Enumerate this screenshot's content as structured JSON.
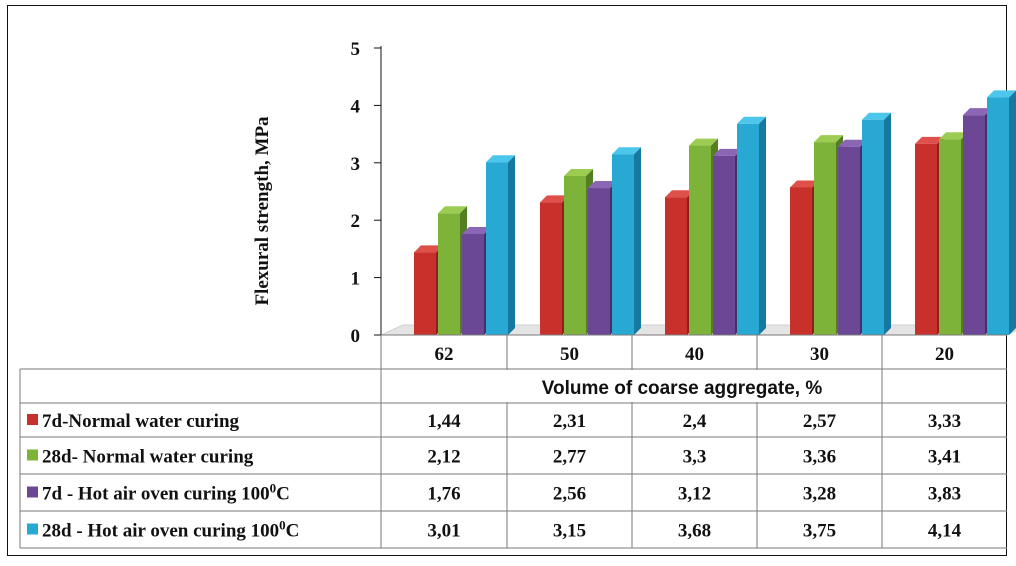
{
  "chart_data": {
    "type": "bar",
    "title": "",
    "xlabel": "Volume of coarse aggregate, %",
    "ylabel": "Flexural strength, MPa",
    "ylim": [
      0,
      5
    ],
    "yticks": [
      "0",
      "1",
      "2",
      "3",
      "4",
      "5"
    ],
    "categories": [
      "62",
      "50",
      "40",
      "30",
      "20"
    ],
    "series": [
      {
        "name": "7d-Normal water curing",
        "legend_text": "7d-Normal water curing",
        "legend_sup": "",
        "legend_suffix": "",
        "color": "#c8302c",
        "color_light": "#e0504a",
        "color_dark": "#8e1f1c",
        "values": [
          1.44,
          2.31,
          2.4,
          2.57,
          3.33
        ],
        "labels": [
          "1,44",
          "2,31",
          "2,4",
          "2,57",
          "3,33"
        ]
      },
      {
        "name": "28d- Normal water curing",
        "legend_text": "28d- Normal water curing",
        "legend_sup": "",
        "legend_suffix": "",
        "color": "#7db338",
        "color_light": "#9ccd52",
        "color_dark": "#557d22",
        "values": [
          2.12,
          2.77,
          3.3,
          3.36,
          3.41
        ],
        "labels": [
          "2,12",
          "2,77",
          "3,3",
          "3,36",
          "3,41"
        ]
      },
      {
        "name": "7d - Hot air oven curing 100⁰C",
        "legend_text": "7d - Hot air oven curing 100",
        "legend_sup": "0",
        "legend_suffix": "C",
        "color": "#6b4796",
        "color_light": "#8a66b5",
        "color_dark": "#472e69",
        "values": [
          1.76,
          2.56,
          3.12,
          3.28,
          3.83
        ],
        "labels": [
          "1,76",
          "2,56",
          "3,12",
          "3,28",
          "3,83"
        ]
      },
      {
        "name": "28d - Hot air oven curing 100⁰C",
        "legend_text": "28d - Hot air oven curing 100",
        "legend_sup": "0",
        "legend_suffix": "C",
        "color": "#27a9d3",
        "color_light": "#4cc6ea",
        "color_dark": "#1879a0",
        "values": [
          3.01,
          3.15,
          3.68,
          3.75,
          4.14
        ],
        "labels": [
          "3,01",
          "3,15",
          "3,68",
          "3,75",
          "4,14"
        ]
      }
    ],
    "legend_position": "data-table"
  }
}
